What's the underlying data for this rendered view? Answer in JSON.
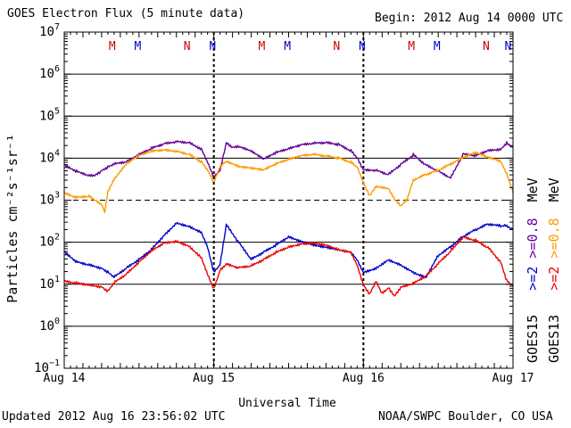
{
  "header": {
    "title": "GOES Electron Flux (5 minute data)",
    "begin": "Begin: 2012 Aug 14 0000 UTC"
  },
  "footer": {
    "updated": "Updated 2012 Aug 16 23:56:02 UTC",
    "credit": "NOAA/SWPC Boulder, CO USA"
  },
  "chart_data": {
    "type": "line",
    "title": "GOES Electron Flux (5 minute data)",
    "xlabel": "Universal Time",
    "ylabel": "Particles cm⁻²s⁻¹sr⁻¹",
    "y_scale": "log",
    "ylim": [
      0.1,
      10000000
    ],
    "xlim": [
      0,
      72
    ],
    "x_unit": "hours since 2012 Aug 14 0000 UTC",
    "x_ticks": [
      {
        "x": 0,
        "label": "Aug 14"
      },
      {
        "x": 24,
        "label": "Aug 15"
      },
      {
        "x": 48,
        "label": "Aug 16"
      },
      {
        "x": 72,
        "label": "Aug 17"
      }
    ],
    "y_ticks": [
      {
        "exp": -1
      },
      {
        "exp": 0
      },
      {
        "exp": 1
      },
      {
        "exp": 2
      },
      {
        "exp": 3
      },
      {
        "exp": 4
      },
      {
        "exp": 5
      },
      {
        "exp": 6
      },
      {
        "exp": 7
      }
    ],
    "y_tick_base": "10",
    "threshold_dashed": 1000,
    "markers": [
      {
        "label": "M",
        "x": 7.7,
        "color": "#cc0000"
      },
      {
        "label": "M",
        "x": 11.8,
        "color": "#0000cc"
      },
      {
        "label": "N",
        "x": 19.7,
        "color": "#cc0000"
      },
      {
        "label": "N",
        "x": 23.8,
        "color": "#0000cc"
      },
      {
        "label": "M",
        "x": 31.7,
        "color": "#cc0000"
      },
      {
        "label": "M",
        "x": 35.8,
        "color": "#0000cc"
      },
      {
        "label": "N",
        "x": 43.7,
        "color": "#cc0000"
      },
      {
        "label": "N",
        "x": 47.8,
        "color": "#0000cc"
      },
      {
        "label": "M",
        "x": 55.7,
        "color": "#cc0000"
      },
      {
        "label": "M",
        "x": 59.8,
        "color": "#0000cc"
      },
      {
        "label": "N",
        "x": 67.7,
        "color": "#cc0000"
      },
      {
        "label": "N",
        "x": 71.2,
        "color": "#0000cc"
      }
    ],
    "legend": [
      {
        "sat": "GOES15",
        "energy": ">=2",
        "unit": "",
        "color": "#0000cc",
        "name": "GOES15 >=2 MeV"
      },
      {
        "sat": "GOES13",
        "energy": ">=2",
        "unit": "",
        "color": "#ee0000",
        "name": "GOES13 >=2 MeV"
      },
      {
        "sat": "",
        "energy": ">=0.8",
        "unit": "MeV",
        "color": "#6600aa",
        "name": "GOES15 >=0.8 MeV"
      },
      {
        "sat": "",
        "energy": ">=0.8",
        "unit": "MeV",
        "color": "#ff9900",
        "name": "GOES13 >=0.8 MeV"
      }
    ],
    "series": [
      {
        "name": "GOES15 >=0.8 MeV",
        "color": "#660099",
        "x": [
          0,
          2,
          4,
          5,
          6,
          7,
          8,
          10,
          12,
          14,
          16,
          18,
          20,
          22,
          23,
          24,
          25,
          26,
          27,
          28,
          30,
          32,
          34,
          36,
          38,
          40,
          42,
          44,
          46,
          47,
          48,
          50,
          52,
          54,
          56,
          58,
          60,
          62,
          64,
          66,
          68,
          70,
          71,
          72
        ],
        "y": [
          7000,
          5000,
          4000,
          4000,
          5000,
          6000,
          7000,
          8000,
          12000,
          17000,
          22000,
          25000,
          24000,
          17000,
          8000,
          3500,
          5000,
          22000,
          17000,
          18000,
          14000,
          9000,
          13000,
          16000,
          20000,
          22000,
          23000,
          21000,
          15000,
          10000,
          5000,
          5000,
          4000,
          7000,
          12000,
          7000,
          5000,
          3500,
          13000,
          12000,
          16000,
          17000,
          24000,
          18000
        ]
      },
      {
        "name": "GOES13 >=0.8 MeV",
        "color": "#ff9900",
        "x": [
          0,
          2,
          4,
          5,
          6,
          6.5,
          7,
          8,
          10,
          12,
          14,
          16,
          18,
          20,
          22,
          23,
          24,
          25,
          26,
          28,
          30,
          32,
          34,
          36,
          38,
          40,
          42,
          44,
          46,
          47,
          48,
          49,
          50,
          52,
          53,
          54,
          55,
          56,
          58,
          60,
          62,
          64,
          66,
          68,
          70,
          71,
          72
        ],
        "y": [
          1500,
          1200,
          1300,
          1000,
          800,
          500,
          1500,
          3000,
          7000,
          11000,
          14000,
          15000,
          14000,
          12000,
          8000,
          5000,
          2500,
          6000,
          8000,
          6000,
          5500,
          5000,
          7000,
          9000,
          11000,
          12000,
          11000,
          10000,
          8000,
          6000,
          2500,
          1200,
          2000,
          1800,
          1000,
          700,
          1000,
          3000,
          4000,
          5000,
          7000,
          10000,
          13000,
          10000,
          8000,
          4000,
          1500
        ]
      },
      {
        "name": "GOES15 >=2 MeV",
        "color": "#0000cc",
        "x": [
          0,
          2,
          4,
          6,
          7,
          8,
          10,
          12,
          14,
          16,
          18,
          20,
          22,
          23,
          24,
          25,
          26,
          28,
          30,
          32,
          34,
          36,
          38,
          40,
          42,
          44,
          46,
          47,
          48,
          50,
          52,
          54,
          56,
          58,
          60,
          62,
          64,
          66,
          68,
          70,
          71,
          72
        ],
        "y": [
          60,
          35,
          30,
          25,
          20,
          15,
          25,
          40,
          70,
          150,
          300,
          250,
          180,
          80,
          20,
          30,
          260,
          100,
          40,
          60,
          90,
          140,
          110,
          90,
          80,
          70,
          60,
          40,
          20,
          25,
          40,
          30,
          20,
          15,
          50,
          80,
          140,
          200,
          270,
          240,
          250,
          200
        ]
      },
      {
        "name": "GOES13 >=2 MeV",
        "color": "#ee0000",
        "x": [
          0,
          2,
          4,
          6,
          7,
          8,
          10,
          12,
          14,
          16,
          18,
          20,
          22,
          23,
          24,
          25,
          26,
          28,
          30,
          32,
          34,
          36,
          38,
          40,
          42,
          44,
          46,
          47,
          48,
          49,
          50,
          51,
          52,
          53,
          54,
          56,
          58,
          60,
          62,
          64,
          66,
          68,
          70,
          71,
          72
        ],
        "y": [
          12,
          11,
          10,
          9,
          7,
          11,
          18,
          35,
          65,
          100,
          110,
          85,
          45,
          18,
          8,
          22,
          30,
          25,
          28,
          40,
          60,
          80,
          95,
          100,
          90,
          70,
          60,
          30,
          10,
          6,
          12,
          6,
          8,
          5,
          8,
          10,
          15,
          30,
          60,
          130,
          110,
          75,
          35,
          12,
          9
        ]
      }
    ]
  }
}
